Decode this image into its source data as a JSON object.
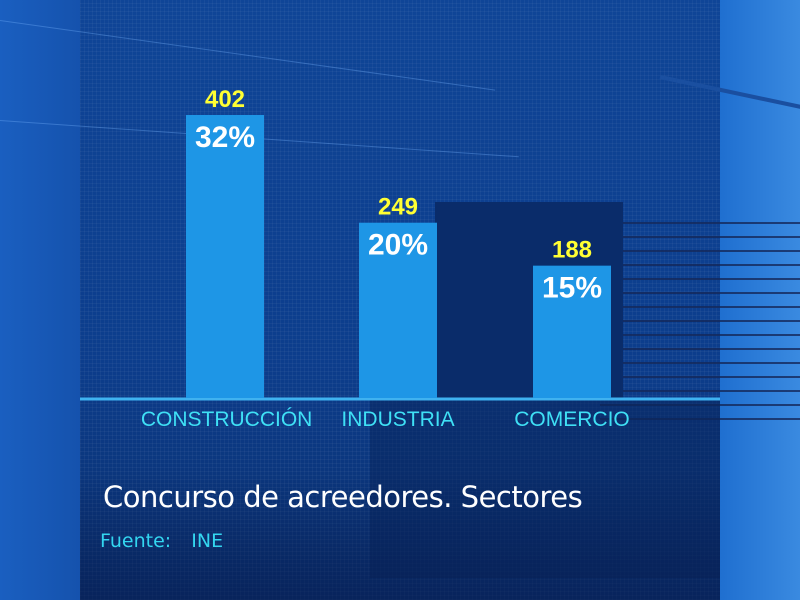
{
  "chart_data": {
    "type": "bar",
    "title": "Concurso de acreedores. Sectores",
    "source_label": "Fuente:",
    "source_value": "INE",
    "categories": [
      "CONSTRUCCIÓN",
      "INDUSTRIA",
      "COMERCIO"
    ],
    "values": [
      402,
      249,
      188
    ],
    "percent_labels": [
      "32%",
      "20%",
      "15%"
    ],
    "ylim": [
      0,
      402
    ],
    "grid": false,
    "colors": {
      "bar": "#1e96e6",
      "value_label": "#ffff33",
      "percent_label": "#ffffff",
      "category_label": "#3fe0f5",
      "axis": "#3fb2f0"
    }
  }
}
